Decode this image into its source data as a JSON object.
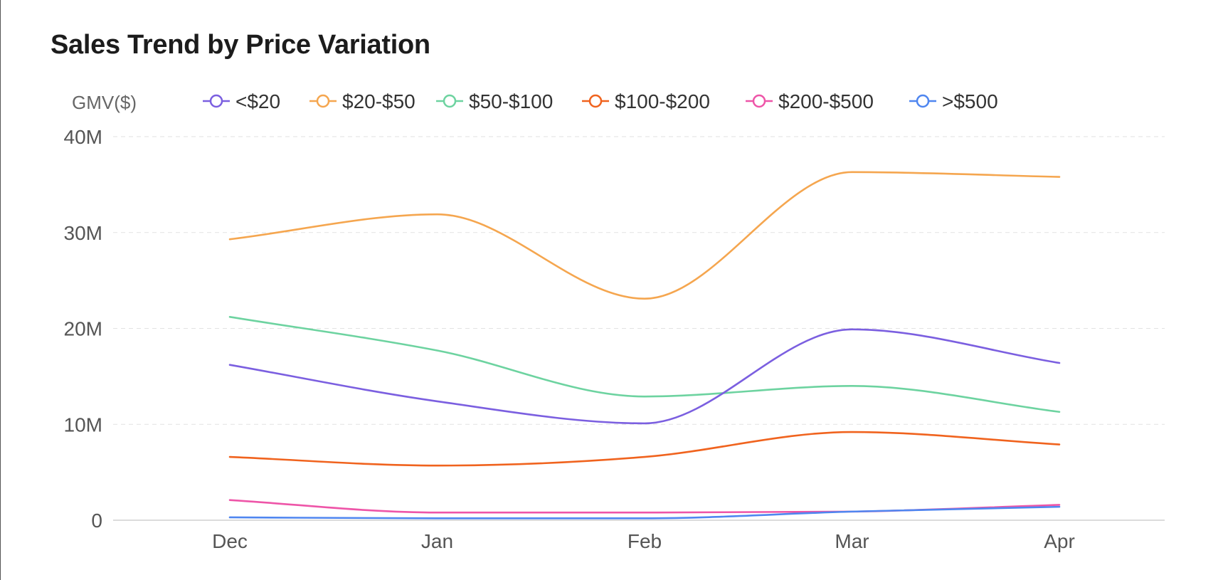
{
  "chart_data": {
    "type": "line",
    "title": "Sales Trend by Price Variation",
    "ylabel": "GMV($)",
    "xlabel": "",
    "categories": [
      "Dec",
      "Jan",
      "Feb",
      "Mar",
      "Apr"
    ],
    "ylim": [
      0,
      40000000
    ],
    "yticks": [
      {
        "value": 0,
        "label": "0"
      },
      {
        "value": 10000000,
        "label": "10M"
      },
      {
        "value": 20000000,
        "label": "20M"
      },
      {
        "value": 30000000,
        "label": "30M"
      },
      {
        "value": 40000000,
        "label": "40M"
      }
    ],
    "grid": true,
    "smooth": true,
    "legend_position": "top",
    "series": [
      {
        "name": "<$20",
        "color": "#7b5fe0",
        "values": [
          16200000,
          12400000,
          10100000,
          19900000,
          16400000
        ]
      },
      {
        "name": "$20-$50",
        "color": "#f5a64f",
        "values": [
          29300000,
          31900000,
          23100000,
          36300000,
          35800000
        ]
      },
      {
        "name": "$50-$100",
        "color": "#6dd3a0",
        "values": [
          21200000,
          17700000,
          12900000,
          14000000,
          11300000
        ]
      },
      {
        "name": "$100-$200",
        "color": "#f0631e",
        "values": [
          6600000,
          5700000,
          6600000,
          9200000,
          7900000
        ]
      },
      {
        "name": "$200-$500",
        "color": "#ee55a8",
        "values": [
          2100000,
          800000,
          800000,
          900000,
          1600000
        ]
      },
      {
        "name": ">$500",
        "color": "#4f86f0",
        "values": [
          300000,
          200000,
          200000,
          900000,
          1400000
        ]
      }
    ]
  }
}
